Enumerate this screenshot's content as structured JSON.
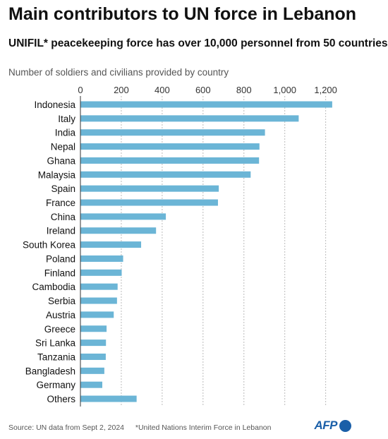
{
  "title": "Main contributors to UN force in Lebanon",
  "subtitle": "UNIFIL* peacekeeping force has over 10,000 personnel from 50 countries",
  "axis_caption": "Number of soldiers and civilians provided by country",
  "footer": {
    "source": "Source: UN data from Sept 2, 2024",
    "note": "*United Nations Interim Force in Lebanon"
  },
  "logo": {
    "text": "AFP"
  },
  "colors": {
    "bar": "#6bb5d6",
    "grid": "#bbbbbb",
    "text": "#111111"
  },
  "chart_data": {
    "type": "bar",
    "orientation": "horizontal",
    "categories": [
      "Indonesia",
      "Italy",
      "India",
      "Nepal",
      "Ghana",
      "Malaysia",
      "Spain",
      "France",
      "China",
      "Ireland",
      "South Korea",
      "Poland",
      "Finland",
      "Cambodia",
      "Serbia",
      "Austria",
      "Greece",
      "Sri Lanka",
      "Tanzania",
      "Bangladesh",
      "Germany",
      "Others"
    ],
    "values": [
      1232,
      1068,
      903,
      876,
      874,
      833,
      677,
      673,
      418,
      370,
      297,
      209,
      202,
      182,
      179,
      163,
      128,
      125,
      124,
      117,
      107,
      275
    ],
    "xlim": [
      0,
      1250
    ],
    "xticks": [
      0,
      200,
      400,
      600,
      800,
      1000,
      1200
    ],
    "xtick_labels": [
      "0",
      "200",
      "400",
      "600",
      "800",
      "1,000",
      "1,200"
    ],
    "grid": "vertical-dashed",
    "xaxis_position": "top"
  }
}
